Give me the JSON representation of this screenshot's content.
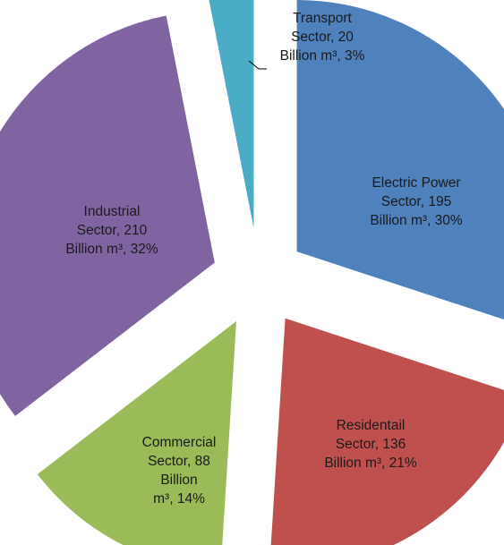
{
  "chart_data": {
    "type": "pie",
    "title": "",
    "exploded": true,
    "categories": [
      "Electric Power Sector",
      "Residentail Sector",
      "Commercial Sector",
      "Industrial Sector",
      "Transport Sector"
    ],
    "values": [
      195,
      136,
      88,
      210,
      20
    ],
    "unit": "Billion m³",
    "percentages": [
      30,
      21,
      14,
      32,
      3
    ],
    "colors": [
      "#4f81bd",
      "#c0504d",
      "#9bbb59",
      "#8064a2",
      "#4bacc6"
    ],
    "data_labels": [
      [
        "Electric Power",
        "Sector, 195",
        "Billion m³, 30%"
      ],
      [
        "Residentail",
        "Sector, 136",
        "Billion m³, 21%"
      ],
      [
        "Commercial",
        "Sector, 88",
        "Billion",
        "m³, 14%"
      ],
      [
        "Industrial",
        "Sector, 210",
        "Billion m³, 32%"
      ],
      [
        "Transport",
        "Sector, 20",
        "Billion m³, 3%"
      ]
    ]
  }
}
